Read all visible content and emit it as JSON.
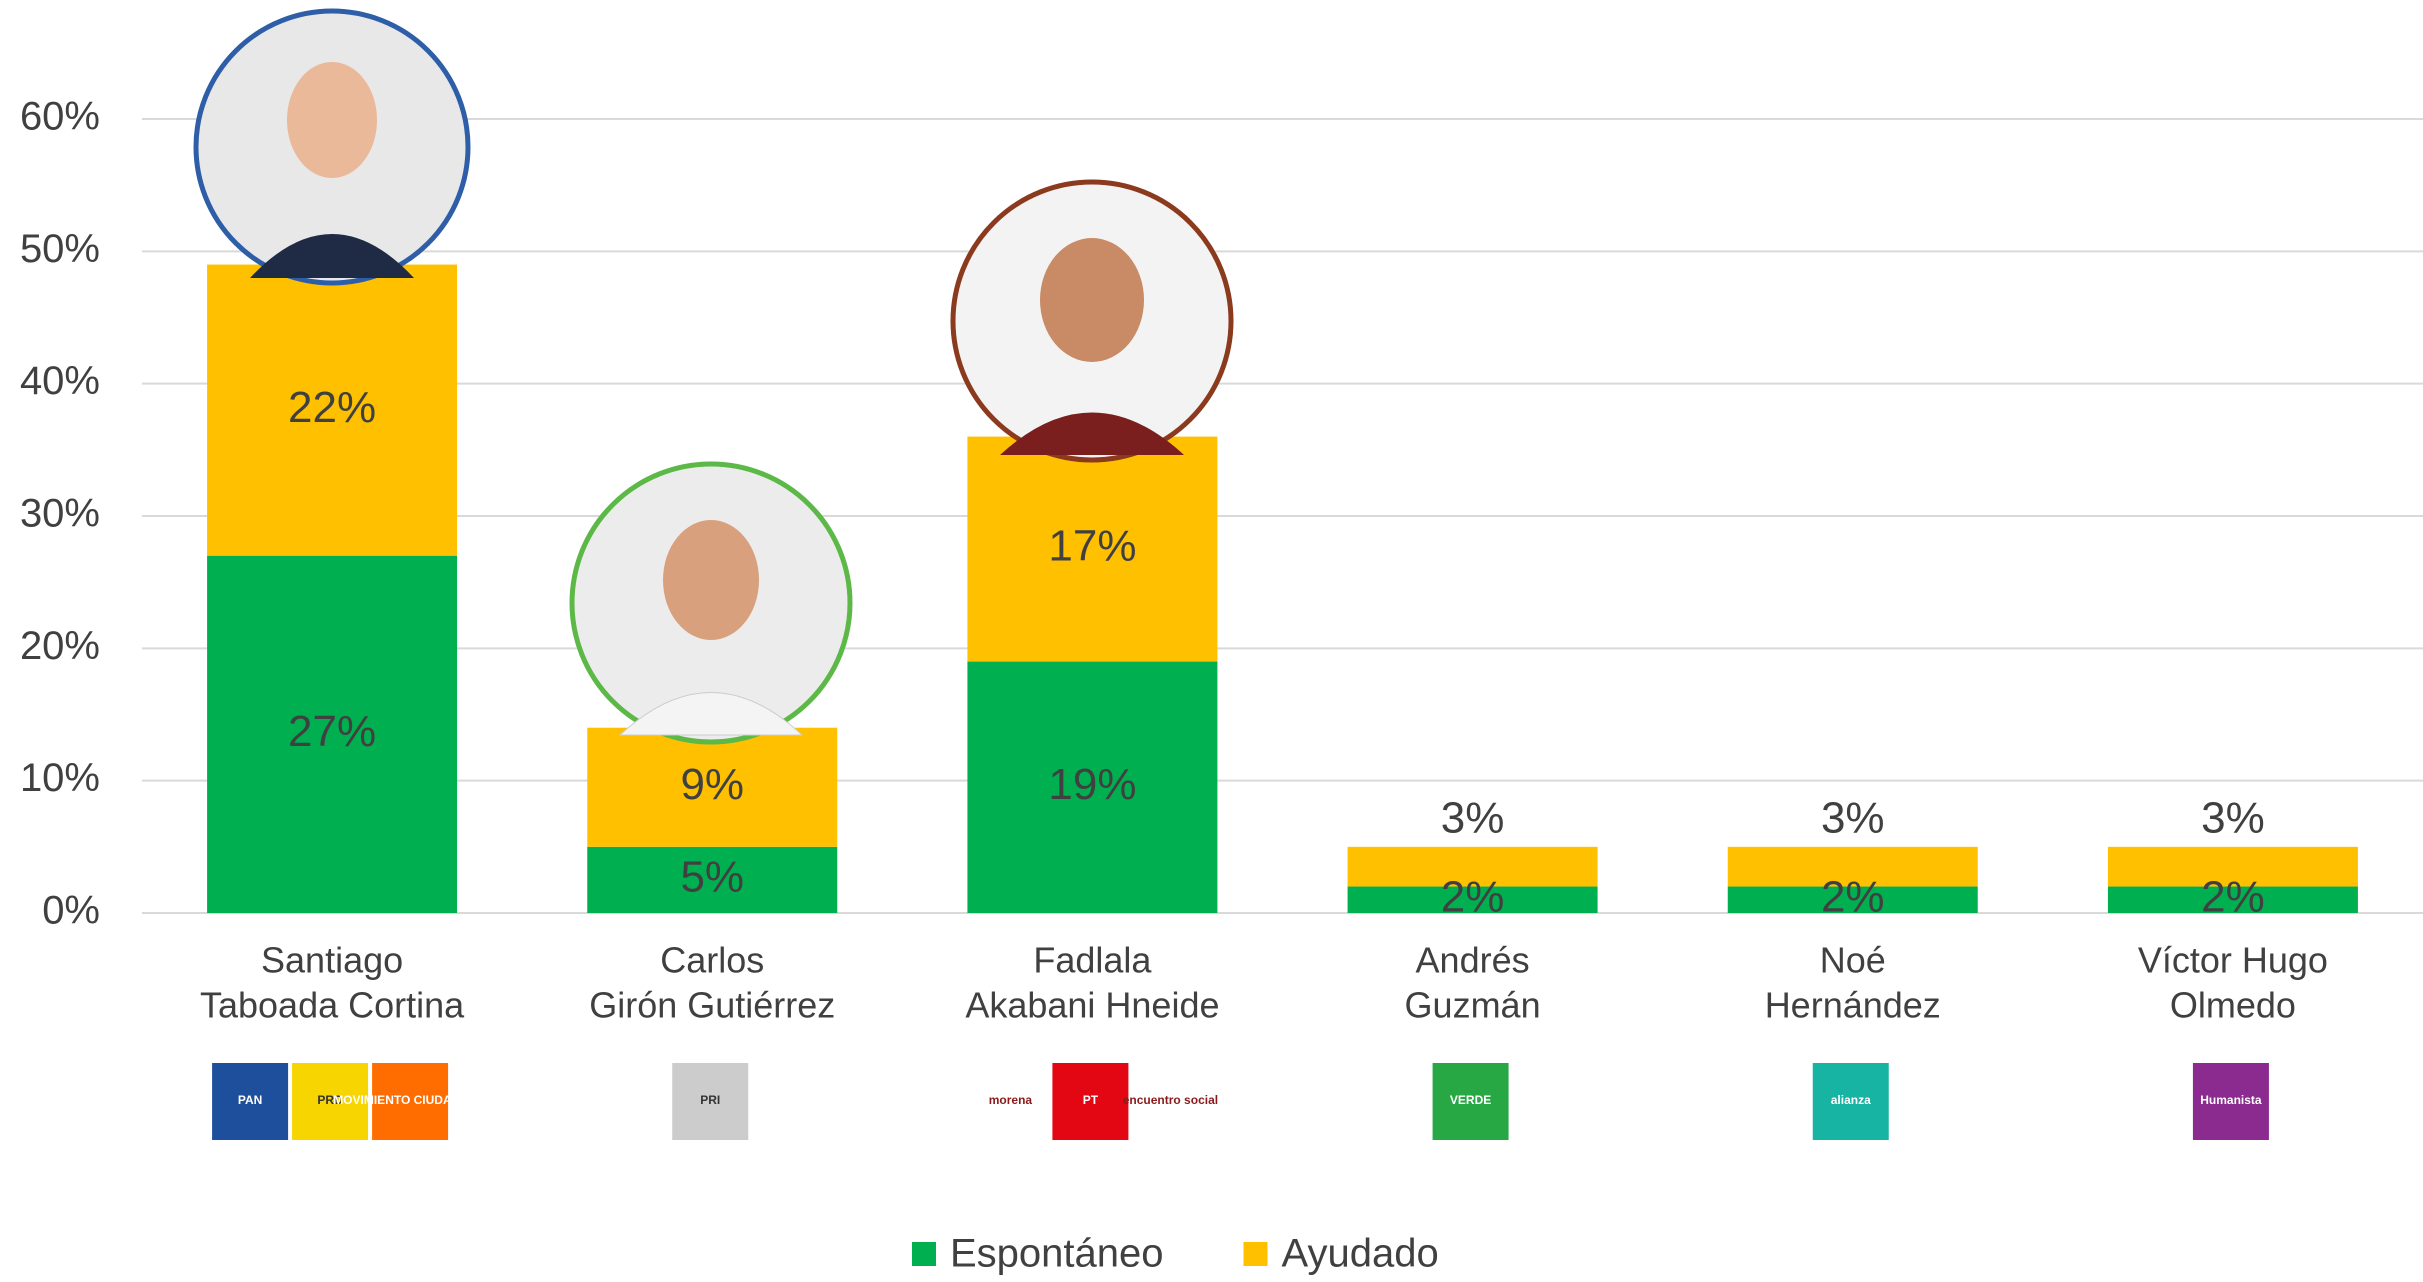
{
  "chart_data": {
    "type": "stacked_bar",
    "categories": [
      [
        "Santiago",
        "Taboada Cortina"
      ],
      [
        "Carlos",
        "Girón Gutiérrez"
      ],
      [
        "Fadlala",
        "Akabani Hneide"
      ],
      [
        "Andrés",
        "Guzmán"
      ],
      [
        "Noé",
        "Hernández"
      ],
      [
        "Víctor Hugo",
        "Olmedo"
      ]
    ],
    "series": [
      {
        "name": "Espontáneo",
        "color": "#00b050",
        "values": [
          27,
          5,
          19,
          2,
          2,
          2
        ],
        "value_labels": [
          "27%",
          "5%",
          "19%",
          "2%",
          "2%",
          "2%"
        ]
      },
      {
        "name": "Ayudado",
        "color": "#ffc000",
        "values": [
          22,
          9,
          17,
          3,
          3,
          3
        ],
        "value_labels": [
          "22%",
          "9%",
          "17%",
          "3%",
          "3%",
          "3%"
        ]
      }
    ],
    "ylim": [
      0,
      60
    ],
    "yticks": [
      {
        "value": 0,
        "label": "0%"
      },
      {
        "value": 10,
        "label": "10%"
      },
      {
        "value": 20,
        "label": "20%"
      },
      {
        "value": 30,
        "label": "30%"
      },
      {
        "value": 40,
        "label": "40%"
      },
      {
        "value": 50,
        "label": "50%"
      },
      {
        "value": 60,
        "label": "60%"
      }
    ],
    "grid": true,
    "legend": "bottom"
  },
  "party_logos": [
    [
      "PAN",
      "PRD",
      "MOVIMIENTO CIUDADANO"
    ],
    [
      "PRI"
    ],
    [
      "morena",
      "PT",
      "encuentro social"
    ],
    [
      "VERDE"
    ],
    [
      "alianza"
    ],
    [
      "Humanista"
    ]
  ]
}
